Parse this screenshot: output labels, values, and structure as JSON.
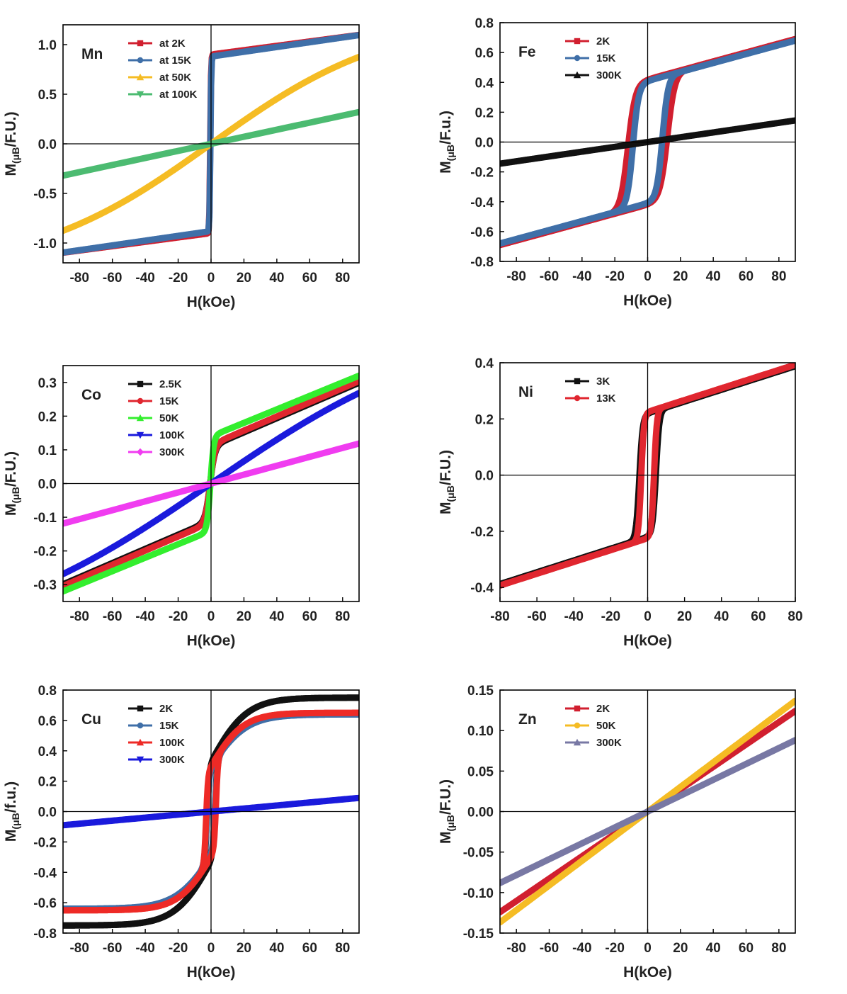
{
  "figure": {
    "description_free": true
  },
  "chart_data": [
    {
      "type": "line",
      "element": "Mn",
      "xlabel": "H(kOe)",
      "ylabel_main": "M",
      "ylabel_sub": "(μB",
      "ylabel_tail": "/F.U.)",
      "xlim": [
        -90,
        90
      ],
      "ylim": [
        -1.2,
        1.2
      ],
      "xticks": [
        -80,
        -60,
        -40,
        -20,
        0,
        20,
        40,
        60,
        80
      ],
      "xtick_labels": [
        "-80",
        "-60",
        "-40",
        "-20",
        "0",
        "20",
        "40",
        "60",
        "80"
      ],
      "yticks": [
        -1.0,
        -0.5,
        0.0,
        0.5,
        1.0
      ],
      "ytick_labels": [
        "-1.0",
        "-0.5",
        "0.0",
        "0.5",
        "1.0"
      ],
      "legend": "top-left",
      "series": [
        {
          "name": "at 2K",
          "color": "#d11f2f",
          "model": "sat",
          "ms": 0.9,
          "chi": 0.0022,
          "hc": 0.5,
          "w": 0.5,
          "loop": false
        },
        {
          "name": "at 15K",
          "color": "#3f6fa8",
          "model": "sat",
          "ms": 0.88,
          "chi": 0.0024,
          "hc": 0.4,
          "w": 0.5,
          "loop": false
        },
        {
          "name": "at 50K",
          "color": "#f5bc24",
          "model": "tanh",
          "amp": 1.3,
          "h0": 110,
          "chi": 0.0,
          "loop": false
        },
        {
          "name": "at 100K",
          "color": "#4cbb71",
          "model": "linear",
          "slope": 0.00356,
          "loop": false
        }
      ]
    },
    {
      "type": "line",
      "element": "Fe",
      "xlabel": "H(kOe)",
      "ylabel_main": "M",
      "ylabel_sub": "(μB",
      "ylabel_tail": "/F.u.)",
      "xlim": [
        -90,
        90
      ],
      "ylim": [
        -0.8,
        0.8
      ],
      "xticks": [
        -80,
        -60,
        -40,
        -20,
        0,
        20,
        40,
        60,
        80
      ],
      "xtick_labels": [
        "-80",
        "-60",
        "-40",
        "-20",
        "0",
        "20",
        "40",
        "60",
        "80"
      ],
      "yticks": [
        -0.8,
        -0.6,
        -0.4,
        -0.2,
        0.0,
        0.2,
        0.4,
        0.6,
        0.8
      ],
      "ytick_labels": [
        "-0.8",
        "-0.6",
        "-0.4",
        "-0.2",
        "0.0",
        "0.2",
        "0.4",
        "0.6",
        "0.8"
      ],
      "legend": "top-left",
      "series": [
        {
          "name": "2K",
          "color": "#d11f2f",
          "model": "loop",
          "ms": 0.42,
          "chi": 0.003,
          "hc": 12,
          "w": 4.5,
          "loop": true
        },
        {
          "name": "15K",
          "color": "#3f6fa8",
          "model": "loop",
          "ms": 0.41,
          "chi": 0.003,
          "hc": 9,
          "w": 3.5,
          "loop": true
        },
        {
          "name": "300K",
          "color": "#111111",
          "model": "linear",
          "slope": 0.00161,
          "loop": false
        }
      ]
    },
    {
      "type": "line",
      "element": "Co",
      "xlabel": "H(kOe)",
      "ylabel_main": "M",
      "ylabel_sub": "(μB",
      "ylabel_tail": "/F.U.)",
      "xlim": [
        -90,
        90
      ],
      "ylim": [
        -0.35,
        0.35
      ],
      "xticks": [
        -80,
        -60,
        -40,
        -20,
        0,
        20,
        40,
        60,
        80
      ],
      "xtick_labels": [
        "-80",
        "-60",
        "-40",
        "-20",
        "0",
        "20",
        "40",
        "60",
        "80"
      ],
      "yticks": [
        -0.3,
        -0.2,
        -0.1,
        0.0,
        0.1,
        0.2,
        0.3
      ],
      "ytick_labels": [
        "-0.3",
        "-0.2",
        "-0.1",
        "0.0",
        "0.1",
        "0.2",
        "0.3"
      ],
      "legend": "top-left",
      "series": [
        {
          "name": "2.5K",
          "color": "#111111",
          "model": "sat",
          "ms": 0.11,
          "chi": 0.0021,
          "hc": 0.6,
          "w": 3,
          "loop": false
        },
        {
          "name": "15K",
          "color": "#e0262f",
          "model": "sat",
          "ms": 0.115,
          "chi": 0.0021,
          "hc": 0.6,
          "w": 3,
          "loop": false
        },
        {
          "name": "50K",
          "color": "#33ee2e",
          "model": "sat",
          "ms": 0.14,
          "chi": 0.002,
          "hc": 0.4,
          "w": 2,
          "loop": false
        },
        {
          "name": "100K",
          "color": "#1a1adc",
          "model": "tanh",
          "amp": 0.5,
          "h0": 150,
          "chi": 0.0,
          "loop": false
        },
        {
          "name": "300K",
          "color": "#f03cf0",
          "model": "linear",
          "slope": 0.00132,
          "loop": false
        }
      ]
    },
    {
      "type": "line",
      "element": "Ni",
      "xlabel": "H(kOe)",
      "ylabel_main": "M",
      "ylabel_sub": "(μB",
      "ylabel_tail": "/F.U.)",
      "xlim": [
        -80,
        80
      ],
      "ylim": [
        -0.45,
        0.4
      ],
      "xticks": [
        -80,
        -60,
        -40,
        -20,
        0,
        20,
        40,
        60,
        80
      ],
      "xtick_labels": [
        "-80",
        "-60",
        "-40",
        "-20",
        "0",
        "20",
        "40",
        "60",
        "80"
      ],
      "yticks": [
        -0.4,
        -0.2,
        0.0,
        0.2,
        0.4
      ],
      "ytick_labels": [
        "-0.4",
        "-0.2",
        "0.0",
        "0.2",
        "0.4"
      ],
      "legend": "top-left",
      "series": [
        {
          "name": "3K",
          "color": "#111111",
          "model": "loop",
          "ms": 0.22,
          "chi": 0.0021,
          "hc": 4.5,
          "w": 1.8,
          "loop": true
        },
        {
          "name": "13K",
          "color": "#e0262f",
          "model": "loop",
          "ms": 0.225,
          "chi": 0.0021,
          "hc": 3.5,
          "w": 1.5,
          "loop": true
        }
      ]
    },
    {
      "type": "line",
      "element": "Cu",
      "xlabel": "H(kOe)",
      "ylabel_main": "M",
      "ylabel_sub": "(μB",
      "ylabel_tail": "/f.u.)",
      "xlim": [
        -90,
        90
      ],
      "ylim": [
        -0.8,
        0.8
      ],
      "xticks": [
        -80,
        -60,
        -40,
        -20,
        0,
        20,
        40,
        60,
        80
      ],
      "xtick_labels": [
        "-80",
        "-60",
        "-40",
        "-20",
        "0",
        "20",
        "40",
        "60",
        "80"
      ],
      "yticks": [
        -0.8,
        -0.6,
        -0.4,
        -0.2,
        0.0,
        0.2,
        0.4,
        0.6,
        0.8
      ],
      "ytick_labels": [
        "-0.8",
        "-0.6",
        "-0.4",
        "-0.2",
        "0.0",
        "0.2",
        "0.4",
        "0.6",
        "0.8"
      ],
      "legend": "top-left",
      "series": [
        {
          "name": "2K",
          "color": "#111111",
          "model": "loop",
          "ms": 0.33,
          "chi": 0.0,
          "hc": 2.5,
          "w": 1.5,
          "extra": 0.42,
          "h1": 22,
          "loop": true
        },
        {
          "name": "15K",
          "color": "#3f6fa8",
          "model": "loop",
          "ms": 0.3,
          "chi": 0.0,
          "hc": 2.5,
          "w": 1.5,
          "extra": 0.34,
          "h1": 22,
          "loop": true
        },
        {
          "name": "100K",
          "color": "#ee2a26",
          "model": "loop",
          "ms": 0.3,
          "chi": 0.0,
          "hc": 3.0,
          "w": 1.2,
          "extra": 0.35,
          "h1": 20,
          "loop": true
        },
        {
          "name": "300K",
          "color": "#1a1adc",
          "model": "linear",
          "slope": 0.001,
          "loop": false
        }
      ]
    },
    {
      "type": "line",
      "element": "Zn",
      "xlabel": "H(kOe)",
      "ylabel_main": "M",
      "ylabel_sub": "(μB",
      "ylabel_tail": "/F.U.)",
      "xlim": [
        -90,
        90
      ],
      "ylim": [
        -0.15,
        0.15
      ],
      "xticks": [
        -80,
        -60,
        -40,
        -20,
        0,
        20,
        40,
        60,
        80
      ],
      "xtick_labels": [
        "-80",
        "-60",
        "-40",
        "-20",
        "0",
        "20",
        "40",
        "60",
        "80"
      ],
      "yticks": [
        -0.15,
        -0.1,
        -0.05,
        0.0,
        0.05,
        0.1,
        0.15
      ],
      "ytick_labels": [
        "-0.15",
        "-0.10",
        "-0.05",
        "0.00",
        "0.05",
        "0.10",
        "0.15"
      ],
      "legend": "top-left",
      "series": [
        {
          "name": "2K",
          "color": "#d11f2f",
          "model": "linear",
          "slope": 0.00138,
          "loop": false
        },
        {
          "name": "50K",
          "color": "#f5bc24",
          "model": "linear",
          "slope": 0.00152,
          "loop": false
        },
        {
          "name": "300K",
          "color": "#7878a4",
          "model": "linear",
          "slope": 0.00098,
          "loop": false
        }
      ]
    }
  ]
}
